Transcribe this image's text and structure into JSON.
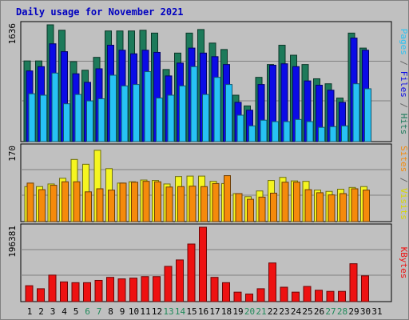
{
  "chart_data": {
    "type": "bar",
    "title": "Daily usage for November 2021",
    "categories": [
      "1",
      "2",
      "3",
      "4",
      "5",
      "6",
      "7",
      "8",
      "9",
      "10",
      "11",
      "12",
      "13",
      "14",
      "15",
      "16",
      "17",
      "18",
      "19",
      "20",
      "21",
      "22",
      "23",
      "24",
      "25",
      "26",
      "27",
      "28",
      "29",
      "30",
      "31"
    ],
    "weekend_days": [
      "6",
      "7",
      "13",
      "14",
      "20",
      "21",
      "27",
      "28"
    ],
    "panels": [
      {
        "id": "top",
        "ymax_label": "1636",
        "ymax": 1636,
        "series": [
          {
            "name": "Hits",
            "color": "#1d7a5a",
            "values": [
              1130,
              1130,
              1636,
              1560,
              1120,
              1000,
              1180,
              1550,
              1550,
              1550,
              1560,
              1520,
              1010,
              1240,
              1520,
              1570,
              1380,
              1290,
              650,
              500,
              900,
              1080,
              1350,
              1210,
              1080,
              880,
              810,
              610,
              1520,
              1310
            ]
          },
          {
            "name": "Files",
            "color": "#0b0be6",
            "values": [
              990,
              1050,
              1370,
              1260,
              950,
              830,
              1020,
              1350,
              1280,
              1230,
              1280,
              1250,
              920,
              1100,
              1310,
              1240,
              1190,
              1080,
              550,
              440,
              800,
              1070,
              1090,
              1050,
              850,
              790,
              720,
              550,
              1450,
              1280
            ]
          },
          {
            "name": "Pages",
            "color": "#27c2f4",
            "values": [
              670,
              650,
              960,
              530,
              660,
              570,
              600,
              930,
              780,
              800,
              980,
              610,
              650,
              780,
              1050,
              660,
              900,
              800,
              370,
              220,
              300,
              280,
              280,
              310,
              280,
              200,
              210,
              220,
              810,
              740
            ]
          }
        ]
      },
      {
        "id": "mid",
        "ymax_label": "170",
        "ymax": 170,
        "series": [
          {
            "name": "Visits",
            "color": "#f5f520",
            "values": [
              80,
              80,
              86,
              99,
              142,
              131,
              163,
              121,
              88,
              91,
              95,
              94,
              86,
              103,
              104,
              104,
              92,
              87,
              64,
              57,
              70,
              94,
              101,
              93,
              92,
              72,
              69,
              74,
              78,
              80
            ]
          },
          {
            "name": "Sites",
            "color": "#f58a0b",
            "values": [
              88,
              73,
              83,
              91,
              91,
              68,
              75,
              72,
              88,
              90,
              92,
              91,
              79,
              80,
              81,
              80,
              87,
              105,
              64,
              51,
              56,
              65,
              90,
              90,
              73,
              66,
              61,
              64,
              75,
              72
            ]
          }
        ]
      },
      {
        "id": "bot",
        "ymax_label": "196381",
        "ymax": 196381,
        "series": [
          {
            "name": "KBytes",
            "color": "#ee1111",
            "values": [
              42000,
              34000,
              70000,
              52000,
              50000,
              50000,
              56000,
              64000,
              60000,
              62000,
              66000,
              66000,
              93000,
              110000,
              152000,
              196381,
              64000,
              50000,
              25000,
              20000,
              34000,
              102000,
              38000,
              25000,
              40000,
              30000,
              27000,
              27000,
              100000,
              68000
            ]
          }
        ]
      }
    ],
    "legend_right": [
      {
        "panel": "top",
        "parts": [
          {
            "text": "Pages",
            "color": "#27c2f4"
          },
          {
            "text": " / ",
            "color": "#666666"
          },
          {
            "text": "Files",
            "color": "#0b0be6"
          },
          {
            "text": " / ",
            "color": "#666666"
          },
          {
            "text": "Hits",
            "color": "#1d7a5a"
          }
        ]
      },
      {
        "panel": "mid",
        "parts": [
          {
            "text": "Sites",
            "color": "#f58a0b"
          },
          {
            "text": " / ",
            "color": "#666666"
          },
          {
            "text": "Visits",
            "color": "#d8d800"
          }
        ]
      },
      {
        "panel": "bot",
        "parts": [
          {
            "text": "KBytes",
            "color": "#ee1111"
          }
        ]
      }
    ],
    "grid": true,
    "colors": {
      "background": "#c0c0c0",
      "title": "#0000c0",
      "weekday_label": "#000000",
      "weekend_label": "#1f8a5a"
    }
  }
}
